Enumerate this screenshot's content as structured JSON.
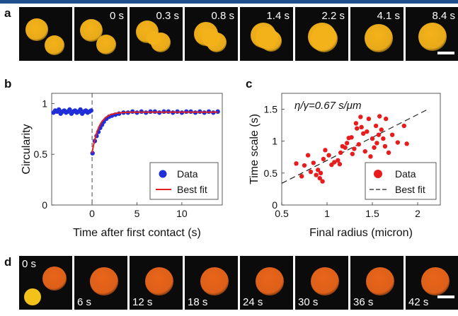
{
  "panel_labels": {
    "a": "a",
    "b": "b",
    "c": "c",
    "d": "d"
  },
  "row_a": {
    "times": [
      "",
      "0 s",
      "0.3 s",
      "0.8 s",
      "1.4 s",
      "2.2 s",
      "4.1 s",
      "8.4 s"
    ],
    "droplet_color": "#f4b21a"
  },
  "row_d": {
    "times": [
      "0 s",
      "6 s",
      "12 s",
      "18 s",
      "24 s",
      "30 s",
      "36 s",
      "42 s"
    ],
    "droplet_color": "#e8641a"
  },
  "chart_data": [
    {
      "type": "scatter",
      "panel": "b",
      "xlabel": "Time after first contact (s)",
      "ylabel": "Circularity",
      "xlim": [
        -4.5,
        14.5
      ],
      "ylim": [
        0,
        1.1
      ],
      "xticks": [
        0,
        5,
        10
      ],
      "yticks": [
        0,
        0.5,
        1
      ],
      "legend": {
        "placement": "bottom-right",
        "entries": [
          "Data",
          "Best fit"
        ]
      },
      "series": [
        {
          "name": "Data",
          "color": "#1f2ed8",
          "points": [
            [
              -4.3,
              0.91
            ],
            [
              -4.1,
              0.93
            ],
            [
              -3.9,
              0.92
            ],
            [
              -3.7,
              0.94
            ],
            [
              -3.5,
              0.9
            ],
            [
              -3.3,
              0.92
            ],
            [
              -3.1,
              0.93
            ],
            [
              -2.9,
              0.91
            ],
            [
              -2.7,
              0.92
            ],
            [
              -2.5,
              0.94
            ],
            [
              -2.3,
              0.9
            ],
            [
              -2.1,
              0.92
            ],
            [
              -1.9,
              0.93
            ],
            [
              -1.7,
              0.91
            ],
            [
              -1.5,
              0.92
            ],
            [
              -1.3,
              0.94
            ],
            [
              -1.1,
              0.9
            ],
            [
              -0.9,
              0.92
            ],
            [
              -0.7,
              0.93
            ],
            [
              -0.5,
              0.91
            ],
            [
              -0.3,
              0.92
            ],
            [
              -0.1,
              0.93
            ],
            [
              0.05,
              0.51
            ],
            [
              0.3,
              0.63
            ],
            [
              0.5,
              0.68
            ],
            [
              0.7,
              0.72
            ],
            [
              0.9,
              0.76
            ],
            [
              1.1,
              0.79
            ],
            [
              1.3,
              0.82
            ],
            [
              1.6,
              0.85
            ],
            [
              1.9,
              0.87
            ],
            [
              2.2,
              0.88
            ],
            [
              2.6,
              0.89
            ],
            [
              3.0,
              0.9
            ],
            [
              3.5,
              0.91
            ],
            [
              4.0,
              0.91
            ],
            [
              4.5,
              0.92
            ],
            [
              5.0,
              0.91
            ],
            [
              5.5,
              0.92
            ],
            [
              6.0,
              0.91
            ],
            [
              6.5,
              0.92
            ],
            [
              7.0,
              0.92
            ],
            [
              7.5,
              0.91
            ],
            [
              8.0,
              0.92
            ],
            [
              8.5,
              0.92
            ],
            [
              9.0,
              0.91
            ],
            [
              9.5,
              0.92
            ],
            [
              10.0,
              0.91
            ],
            [
              10.5,
              0.92
            ],
            [
              11.0,
              0.92
            ],
            [
              11.5,
              0.91
            ],
            [
              12.0,
              0.92
            ],
            [
              12.5,
              0.91
            ],
            [
              13.0,
              0.92
            ],
            [
              13.5,
              0.91
            ],
            [
              14.0,
              0.92
            ]
          ]
        },
        {
          "name": "Best fit",
          "color": "#e32020",
          "model": "exp_recovery",
          "y0": 0.51,
          "y_inf": 0.915,
          "tau": 0.75
        }
      ]
    },
    {
      "type": "scatter",
      "panel": "c",
      "xlabel": "Final radius (micron)",
      "ylabel": "Time scale (s)",
      "annotation": "η/γ=0.67 s/μm",
      "xlim": [
        0.5,
        2.25
      ],
      "ylim": [
        0,
        1.75
      ],
      "xticks": [
        0.5,
        1,
        1.5,
        2
      ],
      "yticks": [
        0,
        0.5,
        1,
        1.5
      ],
      "legend": {
        "placement": "bottom-right",
        "entries": [
          "Data",
          "Best fit"
        ]
      },
      "series": [
        {
          "name": "Data",
          "color": "#e81c1c",
          "points": [
            [
              0.66,
              0.65
            ],
            [
              0.72,
              0.45
            ],
            [
              0.75,
              0.62
            ],
            [
              0.79,
              0.78
            ],
            [
              0.82,
              0.52
            ],
            [
              0.85,
              0.66
            ],
            [
              0.88,
              0.47
            ],
            [
              0.9,
              0.55
            ],
            [
              0.92,
              0.42
            ],
            [
              0.93,
              0.5
            ],
            [
              0.95,
              0.37
            ],
            [
              0.96,
              0.72
            ],
            [
              0.98,
              0.86
            ],
            [
              1.02,
              0.78
            ],
            [
              1.05,
              0.63
            ],
            [
              1.08,
              0.67
            ],
            [
              1.12,
              0.7
            ],
            [
              1.14,
              0.64
            ],
            [
              1.15,
              0.82
            ],
            [
              1.17,
              0.92
            ],
            [
              1.2,
              0.9
            ],
            [
              1.22,
              0.97
            ],
            [
              1.24,
              1.05
            ],
            [
              1.27,
              1.06
            ],
            [
              1.28,
              0.8
            ],
            [
              1.3,
              0.88
            ],
            [
              1.32,
              1.28
            ],
            [
              1.33,
              1.2
            ],
            [
              1.35,
              0.95
            ],
            [
              1.37,
              1.38
            ],
            [
              1.38,
              1.22
            ],
            [
              1.4,
              1.12
            ],
            [
              1.42,
              0.84
            ],
            [
              1.44,
              1.15
            ],
            [
              1.46,
              1.35
            ],
            [
              1.48,
              0.76
            ],
            [
              1.5,
              1.04
            ],
            [
              1.52,
              0.9
            ],
            [
              1.54,
              1.24
            ],
            [
              1.55,
              0.97
            ],
            [
              1.57,
              1.1
            ],
            [
              1.58,
              1.39
            ],
            [
              1.6,
              1.18
            ],
            [
              1.62,
              1.04
            ],
            [
              1.64,
              0.92
            ],
            [
              1.65,
              1.35
            ],
            [
              1.68,
              0.82
            ],
            [
              1.72,
              1.1
            ],
            [
              1.78,
              0.98
            ],
            [
              1.85,
              1.24
            ],
            [
              1.88,
              0.96
            ]
          ]
        },
        {
          "name": "Best fit",
          "color": "#222222",
          "line": [
            [
              0.5,
              0.34
            ],
            [
              2.1,
              1.49
            ]
          ]
        }
      ]
    }
  ]
}
